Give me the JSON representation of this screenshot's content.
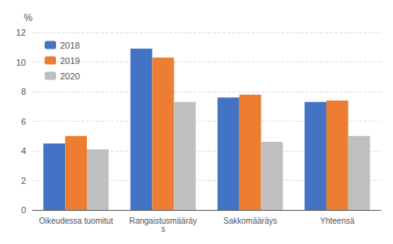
{
  "chart_data": {
    "type": "bar",
    "ylabel": "%",
    "categories": [
      "Oikeudessa tuomitut",
      "Rangaistusmääräys",
      "Sakkomääräys",
      "Yhteensä"
    ],
    "series": [
      {
        "name": "2018",
        "color": "#4472C4",
        "values": [
          4.5,
          10.9,
          7.6,
          7.3
        ]
      },
      {
        "name": "2019",
        "color": "#ED7D31",
        "values": [
          5.0,
          10.3,
          7.8,
          7.4
        ]
      },
      {
        "name": "2020",
        "color": "#BFBFBF",
        "values": [
          4.1,
          7.3,
          4.6,
          5.0
        ]
      }
    ],
    "ylim": [
      0,
      12
    ],
    "yticks": [
      0,
      2,
      4,
      6,
      8,
      10,
      12
    ],
    "grid": true,
    "legend": "upper left"
  }
}
